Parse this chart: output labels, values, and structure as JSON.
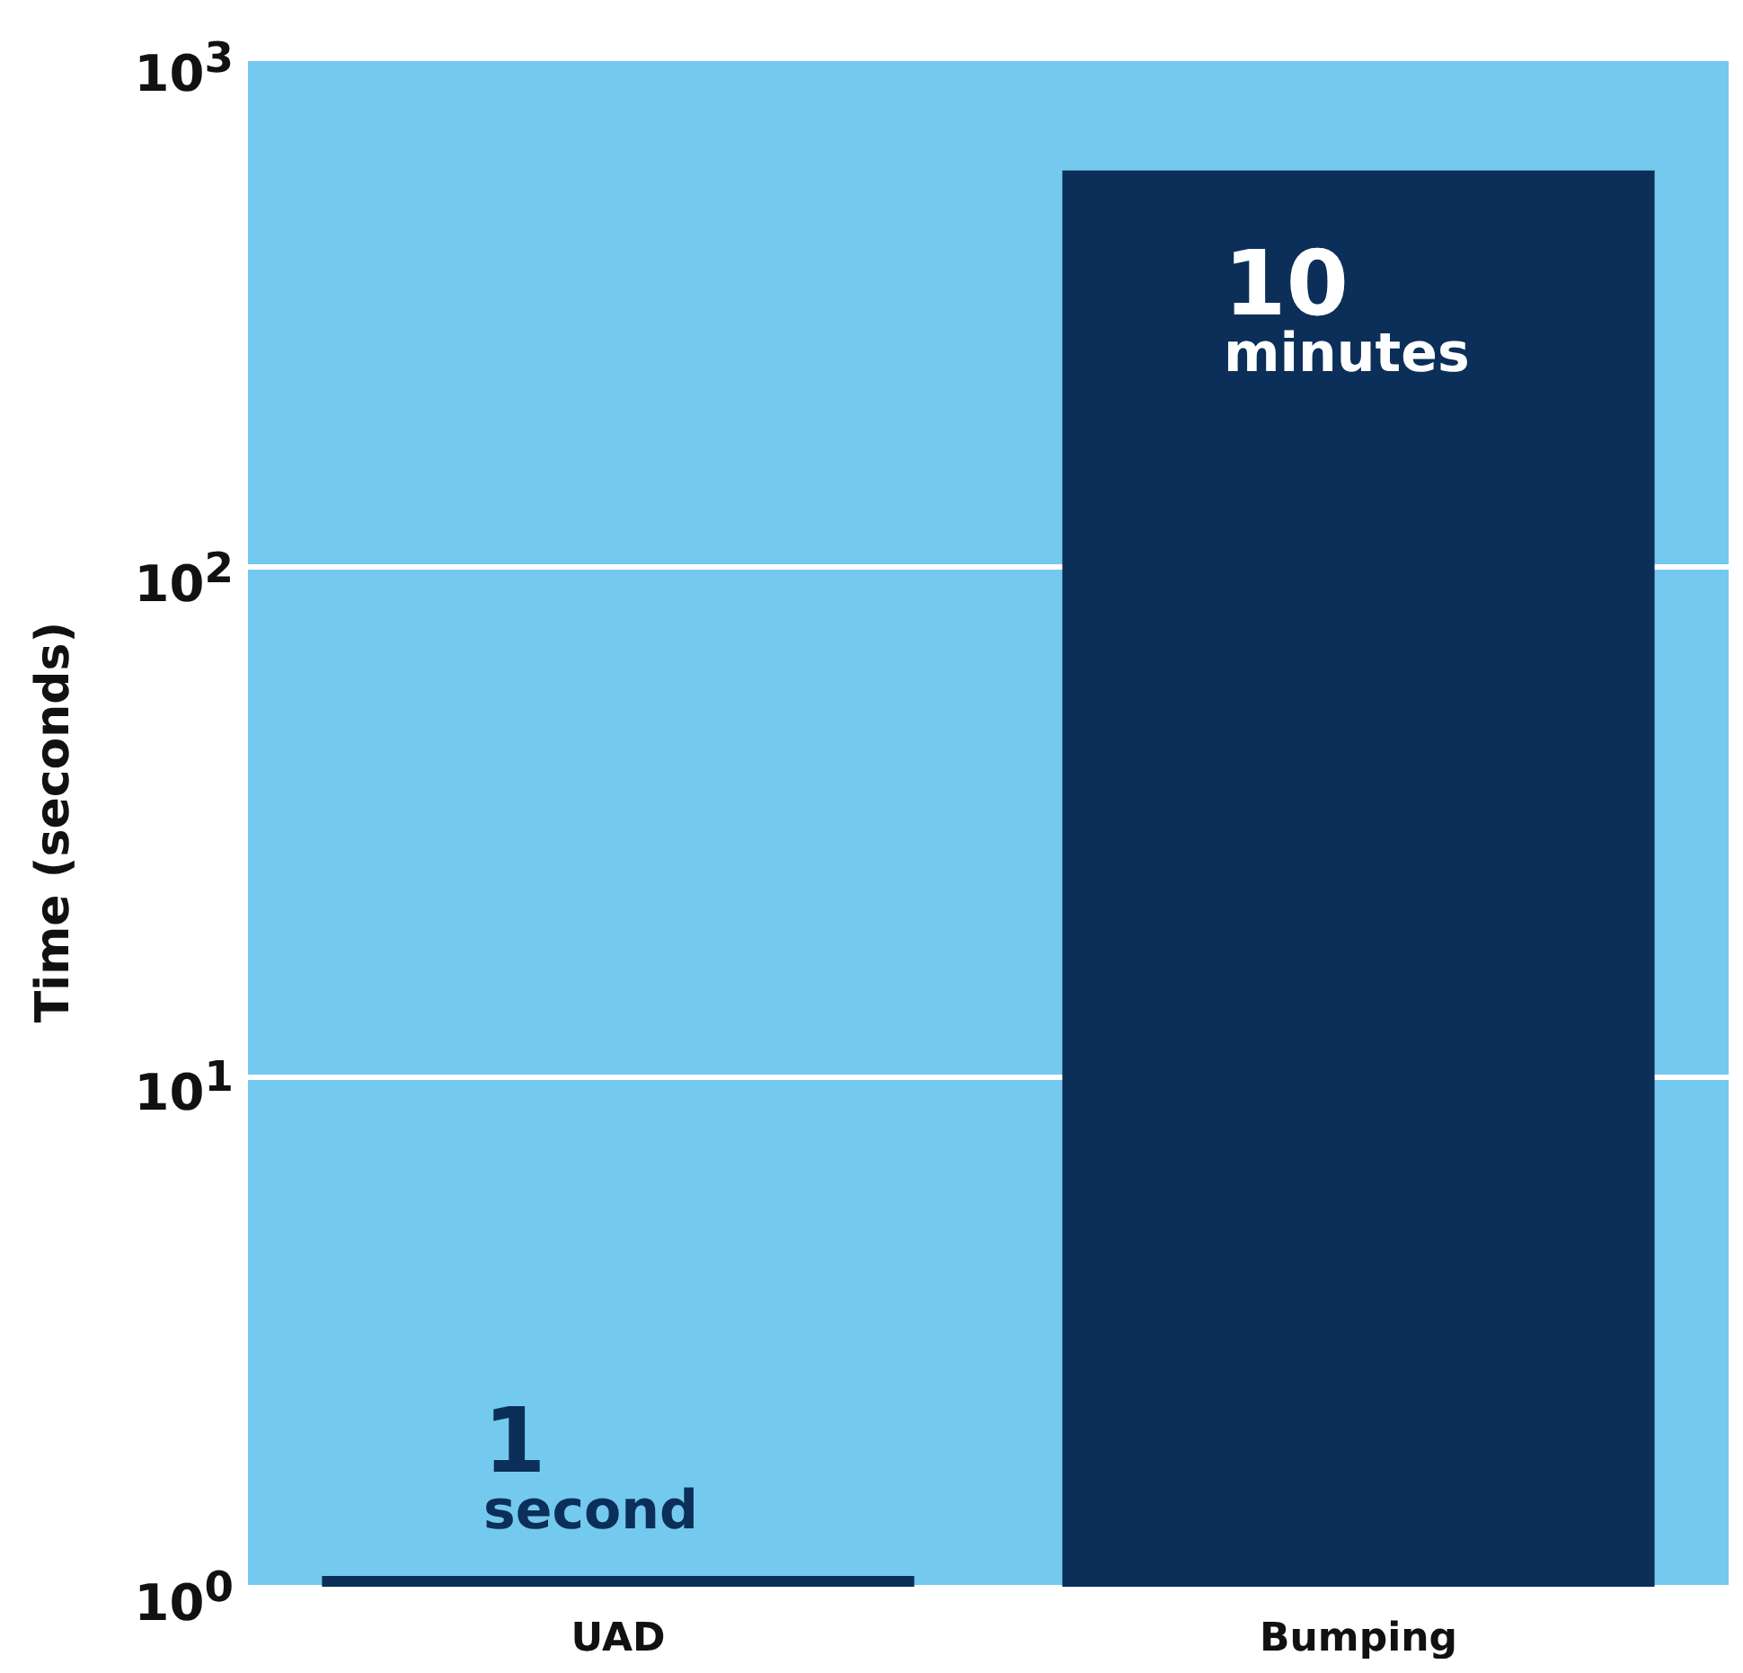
{
  "chart_data": {
    "type": "bar",
    "ylabel": "Time (seconds)",
    "categories": [
      "UAD",
      "Bumping"
    ],
    "values": [
      1.05,
      600
    ],
    "color": "#0b2f58",
    "log": true,
    "ylim": [
      1,
      1000
    ],
    "yticks": [
      {
        "value": 1,
        "label": "10$^{0}$"
      },
      {
        "value": 10,
        "label": "10$^{1}$"
      },
      {
        "value": 100,
        "label": "10$^{2}$"
      },
      {
        "value": 1000,
        "label": "10$^{3}$"
      }
    ],
    "grid": "y",
    "annotations": [
      {
        "text": "1 second",
        "x": "UAD",
        "y": 1.05
      },
      {
        "text": "10 minutes",
        "x": "Bumping",
        "y": 600
      }
    ]
  }
}
